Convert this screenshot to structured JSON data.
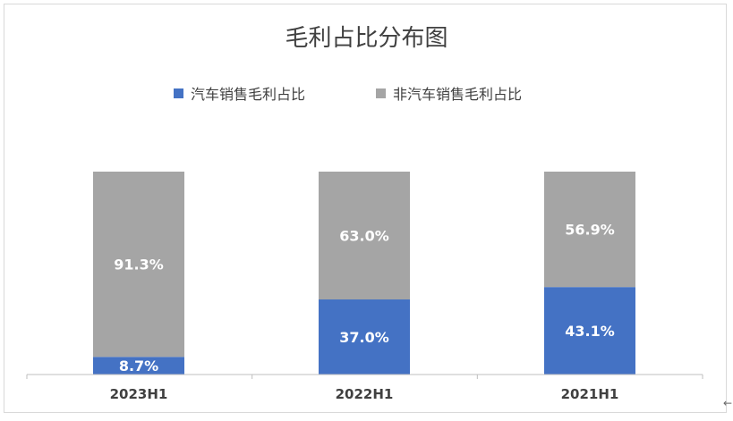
{
  "chart_data": {
    "type": "bar",
    "stacked": true,
    "title": "毛利占比分布图",
    "categories": [
      "2023H1",
      "2022H1",
      "2021H1"
    ],
    "series": [
      {
        "name": "汽车销售毛利占比",
        "values": [
          8.7,
          37.0,
          43.1
        ],
        "labels": [
          "8.7%",
          "37.0%",
          "43.1%"
        ],
        "color": "#4472c4"
      },
      {
        "name": "非汽车销售毛利占比",
        "values": [
          91.3,
          63.0,
          56.9
        ],
        "labels": [
          "91.3%",
          "63.0%",
          "56.9%"
        ],
        "color": "#a5a5a5"
      }
    ],
    "ylim": [
      0,
      100
    ],
    "grid": false,
    "legend_position": "top"
  }
}
